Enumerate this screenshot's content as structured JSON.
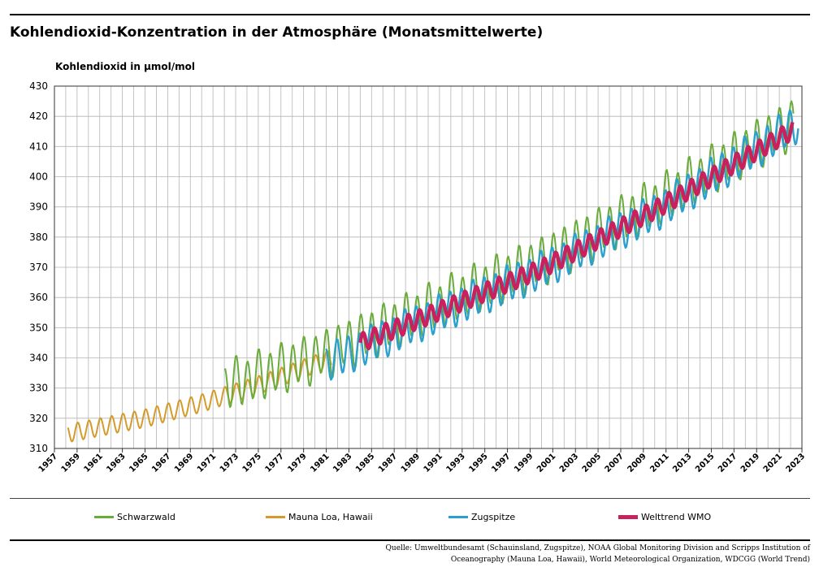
{
  "title": "Kohlendioxid-Konzentration in der Atmosphäre (Monatsmittelwerte)",
  "source_line1": "Quelle: Umweltbundesamt (Schauinsland, Zugspitze), NOAA Global Monitoring Division and Scripps Institution of",
  "source_line2": "Oceanography  (Mauna Loa, Hawaii), World Meteorological Organization, WDCGG (World Trend)",
  "colors": {
    "schwarzwald": "#6aac3c",
    "mauna_loa": "#d49a2a",
    "zugspitze": "#2ba0cc",
    "welttrend": "#c8215e"
  },
  "chart_data": {
    "type": "line",
    "title": "Kohlendioxid-Konzentration in der Atmosphäre (Monatsmittelwerte)",
    "ylabel": "Kohlendioxid in µmol/mol",
    "xlabel": "",
    "ylim": [
      310,
      430
    ],
    "xlim": [
      1957,
      2023
    ],
    "yticks": [
      "310",
      "320",
      "330",
      "340",
      "350",
      "360",
      "370",
      "380",
      "390",
      "400",
      "410",
      "420",
      "430"
    ],
    "xticks": [
      "1957",
      "1959",
      "1961",
      "1963",
      "1965",
      "1967",
      "1969",
      "1971",
      "1973",
      "1975",
      "1977",
      "1979",
      "1981",
      "1983",
      "1985",
      "1987",
      "1989",
      "1991",
      "1993",
      "1995",
      "1997",
      "1999",
      "2001",
      "2003",
      "2005",
      "2007",
      "2009",
      "2011",
      "2013",
      "2015",
      "2017",
      "2019",
      "2021",
      "2023"
    ],
    "grid": true,
    "legend_position": "bottom",
    "series": [
      {
        "name": "Schwarzwald",
        "key": "schwarzwald",
        "x_start": 1972.0,
        "x_end": 2022.3,
        "trend_x": [
          1972,
          1980,
          1990,
          2000,
          2010,
          2022.3
        ],
        "trend_y": [
          330.5,
          340,
          356,
          372,
          391,
          418
        ],
        "amp": 7.5
      },
      {
        "name": "Mauna Loa, Hawaii",
        "key": "mauna_loa",
        "x_start": 1958.2,
        "x_end": 1981.5,
        "trend_x": [
          1958.2,
          1965,
          1970,
          1975,
          1981.5
        ],
        "trend_y": [
          315,
          320,
          325,
          331,
          340
        ],
        "amp": 3
      },
      {
        "name": "Zugspitze",
        "key": "zugspitze",
        "x_start": 1981.0,
        "x_end": 2022.7,
        "trend_x": [
          1981,
          1990,
          2000,
          2010,
          2022.7
        ],
        "trend_y": [
          338,
          353,
          369,
          388,
          418
        ],
        "amp": 6
      },
      {
        "name": "Welttrend WMO",
        "key": "welttrend",
        "x_start": 1984.0,
        "x_end": 2022.2,
        "trend_x": [
          1984,
          1990,
          2000,
          2010,
          2022.2
        ],
        "trend_y": [
          345,
          354,
          369.5,
          389,
          415.5
        ],
        "amp": 3
      }
    ]
  }
}
